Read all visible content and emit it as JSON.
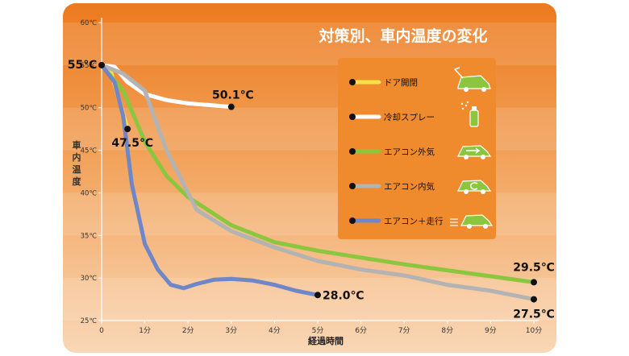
{
  "chart_data": {
    "type": "line",
    "title": "対策別、車内温度の変化",
    "xlabel": "経過時間",
    "ylabel": "車内温度",
    "xlim": [
      0,
      10
    ],
    "ylim": [
      25,
      60
    ],
    "x_ticks": [
      "0",
      "1分",
      "2分",
      "3分",
      "4分",
      "5分",
      "6分",
      "7分",
      "8分",
      "9分",
      "10分"
    ],
    "y_ticks": [
      {
        "value": 25,
        "label": "25℃"
      },
      {
        "value": 30,
        "label": "30℃"
      },
      {
        "value": 35,
        "label": "35℃"
      },
      {
        "value": 40,
        "label": "40℃"
      },
      {
        "value": 45,
        "label": "45℃"
      },
      {
        "value": 50,
        "label": "50℃"
      },
      {
        "value": 55,
        "label": "55℃"
      },
      {
        "value": 60,
        "label": "60℃"
      }
    ],
    "grid": false,
    "legend_position": "top-right",
    "series": [
      {
        "name": "ドア開閉",
        "color": "#f5e24a",
        "icon": "car-door-open-icon",
        "x": [
          0,
          0.2,
          0.4,
          0.6
        ],
        "y": [
          55,
          54.5,
          51,
          47.5
        ]
      },
      {
        "name": "冷却スプレー",
        "color": "#ffffff",
        "icon": "spray-can-icon",
        "x": [
          0,
          0.3,
          0.6,
          1.0,
          1.5,
          2.0,
          2.5,
          3.0
        ],
        "y": [
          55,
          54.8,
          53,
          51.6,
          50.9,
          50.5,
          50.3,
          50.1
        ]
      },
      {
        "name": "エアコン外気",
        "color": "#8cc63f",
        "icon": "car-outside-air-icon",
        "x": [
          0,
          0.5,
          1.0,
          1.5,
          2.0,
          3.0,
          4.0,
          5.0,
          6.0,
          7.0,
          8.0,
          9.0,
          10.0
        ],
        "y": [
          55,
          52,
          46,
          42,
          39.5,
          36.2,
          34.2,
          33.2,
          32.4,
          31.6,
          30.9,
          30.2,
          29.5
        ]
      },
      {
        "name": "エアコン内気",
        "color": "#b3b3b3",
        "icon": "car-recirculation-icon",
        "x": [
          0,
          0.5,
          1.0,
          1.5,
          2.0,
          2.2,
          3.0,
          4.0,
          5.0,
          6.0,
          7.0,
          8.0,
          9.0,
          10.0
        ],
        "y": [
          55,
          54,
          52,
          45,
          40,
          38,
          35.5,
          33.6,
          32.0,
          31.0,
          30.3,
          29.2,
          28.5,
          27.5
        ]
      },
      {
        "name": "エアコン＋走行",
        "color": "#6f86c8",
        "icon": "car-driving-icon",
        "x": [
          0,
          0.3,
          0.5,
          0.7,
          1.0,
          1.3,
          1.6,
          1.9,
          2.2,
          2.6,
          3.0,
          3.5,
          4.0,
          4.5,
          5.0
        ],
        "y": [
          55,
          53,
          49,
          41,
          34,
          31,
          29.2,
          28.8,
          29.3,
          29.8,
          29.9,
          29.7,
          29.2,
          28.5,
          28.0
        ]
      }
    ],
    "annotations": [
      {
        "text": "55℃",
        "x": 0,
        "y": 55
      },
      {
        "text": "47.5℃",
        "x": 0.6,
        "y": 47.5
      },
      {
        "text": "50.1℃",
        "x": 3,
        "y": 50.1
      },
      {
        "text": "28.0℃",
        "x": 5,
        "y": 28.0
      },
      {
        "text": "29.5℃",
        "x": 10,
        "y": 29.5
      },
      {
        "text": "27.5℃",
        "x": 10,
        "y": 27.5
      }
    ]
  }
}
